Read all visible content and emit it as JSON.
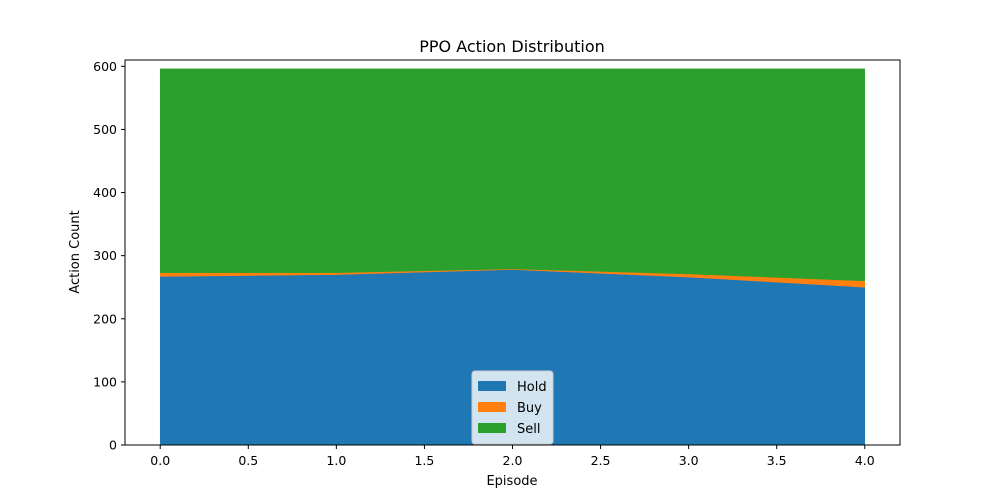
{
  "chart_data": {
    "type": "area",
    "stacked": true,
    "title": "PPO Action Distribution",
    "xlabel": "Episode",
    "ylabel": "Action Count",
    "x": [
      0,
      1,
      2,
      3,
      4
    ],
    "xlim": [
      -0.2,
      4.2
    ],
    "ylim": [
      0,
      610
    ],
    "xticks": [
      0.0,
      0.5,
      1.0,
      1.5,
      2.0,
      2.5,
      3.0,
      3.5,
      4.0
    ],
    "xtick_labels": [
      "0.0",
      "0.5",
      "1.0",
      "1.5",
      "2.0",
      "2.5",
      "3.0",
      "3.5",
      "4.0"
    ],
    "yticks": [
      0,
      100,
      200,
      300,
      400,
      500,
      600
    ],
    "ytick_labels": [
      "0",
      "100",
      "200",
      "300",
      "400",
      "500",
      "600"
    ],
    "grid": false,
    "legend_position": "bottom-center",
    "series": [
      {
        "name": "Hold",
        "color": "#1f77b4",
        "values": [
          267,
          270,
          278,
          266,
          250
        ]
      },
      {
        "name": "Buy",
        "color": "#ff7f0e",
        "values": [
          6,
          3,
          1,
          5,
          10
        ]
      },
      {
        "name": "Sell",
        "color": "#2ca02c",
        "values": [
          323,
          323,
          317,
          325,
          336
        ]
      }
    ]
  }
}
